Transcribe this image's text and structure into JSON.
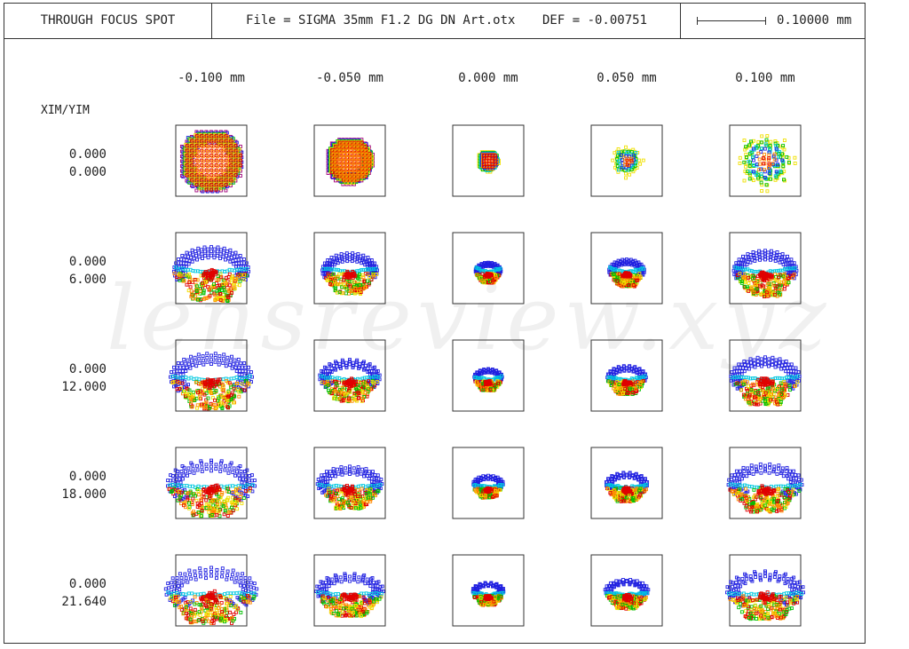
{
  "header": {
    "title": "THROUGH FOCUS SPOT",
    "file": "File = SIGMA 35mm F1.2 DG DN Art.otx",
    "def": "DEF = -0.00751",
    "scale_label": "0.10000 mm"
  },
  "watermark": "lensreview.xyz",
  "colors": {
    "wavelength_1": "#1f1fe0",
    "wavelength_2": "#00c8e0",
    "wavelength_3": "#00c000",
    "wavelength_4": "#f0e000",
    "wavelength_5": "#ff8c00",
    "wavelength_6": "#e00000",
    "wavelength_7": "#a0007a"
  },
  "chart_data": {
    "type": "scatter",
    "title": "THROUGH FOCUS SPOT",
    "rows_header": "XIM/YIM",
    "focus_offsets": [
      "-0.100 mm",
      "-0.050 mm",
      "0.000 mm",
      "0.050 mm",
      "0.100 mm"
    ],
    "fields": [
      {
        "xim": "0.000",
        "yim": "0.000"
      },
      {
        "xim": "0.000",
        "yim": "6.000"
      },
      {
        "xim": "0.000",
        "yim": "12.000"
      },
      {
        "xim": "0.000",
        "yim": "18.000"
      },
      {
        "xim": "0.000",
        "yim": "21.640"
      }
    ],
    "scale_bar_mm": 0.1,
    "box_size_mm": 0.1
  }
}
